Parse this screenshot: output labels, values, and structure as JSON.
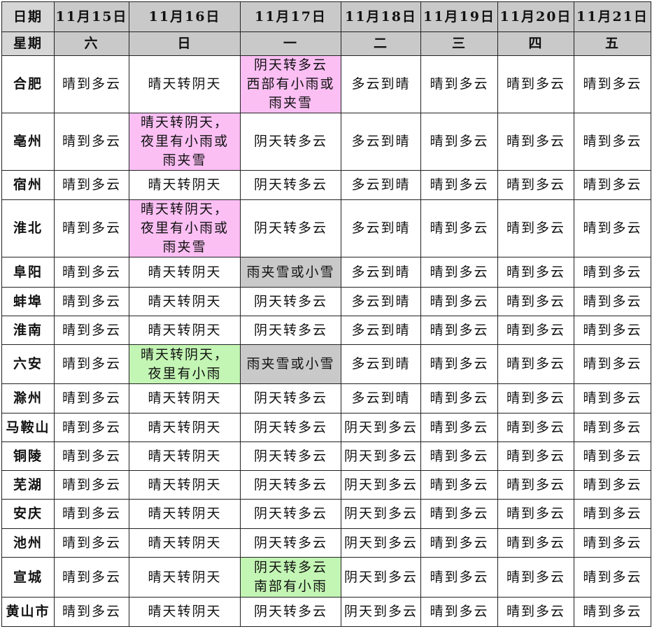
{
  "header": {
    "date_label": "日期",
    "weekday_label": "星期",
    "dates": [
      "11月15日",
      "11月16日",
      "11月17日",
      "11月18日",
      "11月19日",
      "11月20日",
      "11月21日"
    ],
    "weekdays": [
      "六",
      "日",
      "一",
      "二",
      "三",
      "四",
      "五"
    ]
  },
  "colors": {
    "header": "#c9c9c9",
    "pink": "#fbbff4",
    "green": "#c3f5b4",
    "gray": "#c9c9c9"
  },
  "rows": [
    {
      "city": "合肥",
      "cells": [
        {
          "t": "晴到多云"
        },
        {
          "t": "晴天转阴天"
        },
        {
          "t": "阴天转多云\n西部有小雨或\n雨夹雪",
          "c": "pink"
        },
        {
          "t": "多云到晴"
        },
        {
          "t": "晴到多云"
        },
        {
          "t": "晴到多云"
        },
        {
          "t": "晴到多云"
        }
      ]
    },
    {
      "city": "亳州",
      "cells": [
        {
          "t": "晴到多云"
        },
        {
          "t": "晴天转阴天，\n夜里有小雨或\n雨夹雪",
          "c": "pink"
        },
        {
          "t": "阴天转多云"
        },
        {
          "t": "多云到晴"
        },
        {
          "t": "晴到多云"
        },
        {
          "t": "晴到多云"
        },
        {
          "t": "晴到多云"
        }
      ]
    },
    {
      "city": "宿州",
      "cells": [
        {
          "t": "晴到多云"
        },
        {
          "t": "晴天转阴天"
        },
        {
          "t": "阴天转多云"
        },
        {
          "t": "多云到晴"
        },
        {
          "t": "晴到多云"
        },
        {
          "t": "晴到多云"
        },
        {
          "t": "晴到多云"
        }
      ]
    },
    {
      "city": "淮北",
      "cells": [
        {
          "t": "晴到多云"
        },
        {
          "t": "晴天转阴天，\n夜里有小雨或\n雨夹雪",
          "c": "pink"
        },
        {
          "t": "阴天转多云"
        },
        {
          "t": "多云到晴"
        },
        {
          "t": "晴到多云"
        },
        {
          "t": "晴到多云"
        },
        {
          "t": "晴到多云"
        }
      ]
    },
    {
      "city": "阜阳",
      "cells": [
        {
          "t": "晴到多云"
        },
        {
          "t": "晴天转阴天"
        },
        {
          "t": "雨夹雪或小雪",
          "c": "gray"
        },
        {
          "t": "多云到晴"
        },
        {
          "t": "晴到多云"
        },
        {
          "t": "晴到多云"
        },
        {
          "t": "晴到多云"
        }
      ]
    },
    {
      "city": "蚌埠",
      "cells": [
        {
          "t": "晴到多云"
        },
        {
          "t": "晴天转阴天"
        },
        {
          "t": "阴天转多云"
        },
        {
          "t": "多云到晴"
        },
        {
          "t": "晴到多云"
        },
        {
          "t": "晴到多云"
        },
        {
          "t": "晴到多云"
        }
      ]
    },
    {
      "city": "淮南",
      "cells": [
        {
          "t": "晴到多云"
        },
        {
          "t": "晴天转阴天"
        },
        {
          "t": "阴天转多云"
        },
        {
          "t": "多云到晴"
        },
        {
          "t": "晴到多云"
        },
        {
          "t": "晴到多云"
        },
        {
          "t": "晴到多云"
        }
      ]
    },
    {
      "city": "六安",
      "cells": [
        {
          "t": "晴到多云"
        },
        {
          "t": "晴天转阴天，\n夜里有小雨",
          "c": "green"
        },
        {
          "t": "雨夹雪或小雪",
          "c": "gray"
        },
        {
          "t": "多云到晴"
        },
        {
          "t": "晴到多云"
        },
        {
          "t": "晴到多云"
        },
        {
          "t": "晴到多云"
        }
      ]
    },
    {
      "city": "滁州",
      "cells": [
        {
          "t": "晴到多云"
        },
        {
          "t": "晴天转阴天"
        },
        {
          "t": "阴天转多云"
        },
        {
          "t": "多云到晴"
        },
        {
          "t": "晴到多云"
        },
        {
          "t": "晴到多云"
        },
        {
          "t": "晴到多云"
        }
      ]
    },
    {
      "city": "马鞍山",
      "cells": [
        {
          "t": "晴到多云"
        },
        {
          "t": "晴天转阴天"
        },
        {
          "t": "阴天转多云"
        },
        {
          "t": "阴天到多云"
        },
        {
          "t": "晴到多云"
        },
        {
          "t": "晴到多云"
        },
        {
          "t": "晴到多云"
        }
      ]
    },
    {
      "city": "铜陵",
      "cells": [
        {
          "t": "晴到多云"
        },
        {
          "t": "晴天转阴天"
        },
        {
          "t": "阴天转多云"
        },
        {
          "t": "阴天到多云"
        },
        {
          "t": "晴到多云"
        },
        {
          "t": "晴到多云"
        },
        {
          "t": "晴到多云"
        }
      ]
    },
    {
      "city": "芜湖",
      "cells": [
        {
          "t": "晴到多云"
        },
        {
          "t": "晴天转阴天"
        },
        {
          "t": "阴天转多云"
        },
        {
          "t": "阴天到多云"
        },
        {
          "t": "晴到多云"
        },
        {
          "t": "晴到多云"
        },
        {
          "t": "晴到多云"
        }
      ]
    },
    {
      "city": "安庆",
      "cells": [
        {
          "t": "晴到多云"
        },
        {
          "t": "晴天转阴天"
        },
        {
          "t": "阴天转多云"
        },
        {
          "t": "阴天到多云"
        },
        {
          "t": "晴到多云"
        },
        {
          "t": "晴到多云"
        },
        {
          "t": "晴到多云"
        }
      ]
    },
    {
      "city": "池州",
      "cells": [
        {
          "t": "晴到多云"
        },
        {
          "t": "晴天转阴天"
        },
        {
          "t": "阴天转多云"
        },
        {
          "t": "阴天到多云"
        },
        {
          "t": "晴到多云"
        },
        {
          "t": "晴到多云"
        },
        {
          "t": "晴到多云"
        }
      ]
    },
    {
      "city": "宣城",
      "cells": [
        {
          "t": "晴到多云"
        },
        {
          "t": "晴天转阴天"
        },
        {
          "t": "阴天转多云\n南部有小雨",
          "c": "green"
        },
        {
          "t": "阴天到多云"
        },
        {
          "t": "晴到多云"
        },
        {
          "t": "晴到多云"
        },
        {
          "t": "晴到多云"
        }
      ]
    },
    {
      "city": "黄山市",
      "cells": [
        {
          "t": "晴到多云"
        },
        {
          "t": "晴天转阴天"
        },
        {
          "t": "阴天转多云"
        },
        {
          "t": "阴天到多云"
        },
        {
          "t": "晴到多云"
        },
        {
          "t": "晴到多云"
        },
        {
          "t": "晴到多云"
        }
      ]
    }
  ]
}
